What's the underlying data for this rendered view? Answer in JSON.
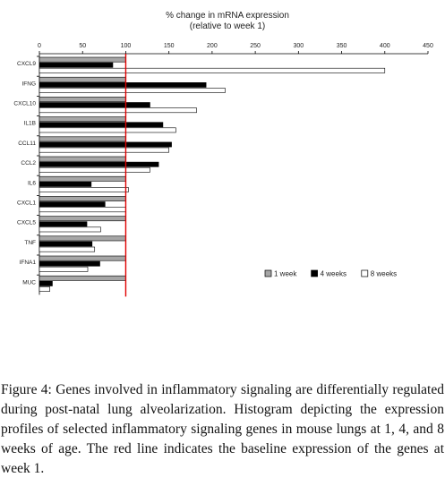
{
  "chart_data": {
    "type": "bar",
    "orientation": "horizontal",
    "title": "% change in mRNA expression",
    "subtitle": "(relative to week 1)",
    "x_ticks": [
      "0",
      "50",
      "100",
      "150",
      "200",
      "250",
      "300",
      "350",
      "400",
      "450"
    ],
    "xlim": [
      0,
      450
    ],
    "baseline": 100,
    "categories": [
      "CXCL9",
      "IFNG",
      "CXCL10",
      "IL1B",
      "CCL11",
      "CCL2",
      "IL6",
      "CXCL1",
      "CXCL5",
      "TNF",
      "IFNA1",
      "MUC"
    ],
    "series": [
      {
        "name": "1 week",
        "values": [
          100,
          100,
          100,
          100,
          100,
          100,
          100,
          100,
          100,
          100,
          100,
          100
        ]
      },
      {
        "name": "4 weeks",
        "values": [
          85,
          193,
          128,
          143,
          153,
          138,
          60,
          76,
          55,
          61,
          70,
          15
        ]
      },
      {
        "name": "8 weeks",
        "values": [
          400,
          215,
          182,
          158,
          150,
          128,
          103,
          100,
          71,
          64,
          56,
          12
        ]
      }
    ],
    "legend_position": "bottom-right",
    "colors": {
      "1 week": "#a6a6a6",
      "4 weeks": "#000000",
      "8 weeks": "#ffffff",
      "baseline": "#e00000"
    }
  },
  "caption": {
    "label": "Figure 4:",
    "text": " Genes involved in inflammatory signaling are differentially regulated during post-natal lung alveolarization. Histogram depicting the expression profiles of selected inflammatory signaling genes in mouse lungs at 1, 4, and 8 weeks of age. The red line indicates the baseline expression of the genes at week 1."
  }
}
